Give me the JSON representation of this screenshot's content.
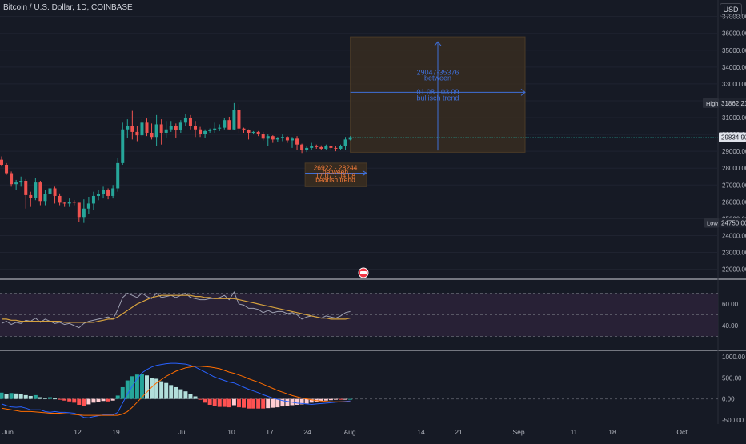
{
  "header": {
    "symbol": "Bitcoin / U.S. Dollar, 1D, COINBASE",
    "currency": "USD"
  },
  "colors": {
    "background": "#161a25",
    "up": "#26a69a",
    "down": "#ef5350",
    "grid": "#1f2330",
    "axis_text": "#b2b5be",
    "projection_box": "#3c2f20",
    "projection_text": "#3f6fd8",
    "bearish_text": "#f57c3a",
    "rsi_band": "#2a2238",
    "rsi_line": "#9c9fb0",
    "rsi_ma": "#d6a23e",
    "macd_line": "#2962ff",
    "signal_line": "#ff6d00"
  },
  "chart_data": {
    "type": "candlestick",
    "price_axis": {
      "ticks": [
        "37000.00",
        "36000.00",
        "35000.00",
        "34000.00",
        "33000.00",
        "32000.00",
        "31000.00",
        "30000.00",
        "29000.00",
        "28000.00",
        "27000.00",
        "26000.00",
        "25000.00",
        "24000.00",
        "23000.00",
        "22000.00"
      ],
      "min": 21600,
      "max": 37600
    },
    "time_axis": {
      "labels": [
        "Jun",
        "12",
        "19",
        "Jul",
        "10",
        "17",
        "24",
        "Aug",
        "14",
        "21",
        "Sep",
        "11",
        "18",
        "Oct"
      ]
    },
    "candles": [
      [
        28500,
        28700,
        28100,
        28200
      ],
      [
        28200,
        28300,
        27600,
        27700
      ],
      [
        27700,
        27800,
        26900,
        27050
      ],
      [
        27050,
        27300,
        26700,
        27150
      ],
      [
        27150,
        27500,
        26900,
        27250
      ],
      [
        27250,
        27350,
        25600,
        26400
      ],
      [
        26400,
        26600,
        25700,
        26250
      ],
      [
        26250,
        27400,
        26100,
        27150
      ],
      [
        27150,
        27250,
        25800,
        26050
      ],
      [
        26050,
        26700,
        25800,
        26450
      ],
      [
        26450,
        27100,
        26200,
        26800
      ],
      [
        26800,
        26900,
        25900,
        26350
      ],
      [
        26350,
        26500,
        25800,
        25950
      ],
      [
        25950,
        26000,
        25700,
        25900
      ],
      [
        25900,
        26200,
        25700,
        26000
      ],
      [
        26000,
        26100,
        25800,
        25950
      ],
      [
        25950,
        25900,
        24800,
        25100
      ],
      [
        25100,
        26150,
        24750,
        25600
      ],
      [
        25600,
        26300,
        25300,
        25900
      ],
      [
        25900,
        26600,
        25500,
        26350
      ],
      [
        26350,
        26700,
        26100,
        26450
      ],
      [
        26450,
        26900,
        26200,
        26700
      ],
      [
        26700,
        26800,
        26150,
        26350
      ],
      [
        26350,
        27000,
        26200,
        26800
      ],
      [
        26800,
        28600,
        26600,
        28300
      ],
      [
        28300,
        30700,
        28200,
        30300
      ],
      [
        30300,
        30900,
        29800,
        30500
      ],
      [
        30500,
        31400,
        29700,
        30150
      ],
      [
        30150,
        30500,
        29600,
        29950
      ],
      [
        29950,
        30900,
        29850,
        30700
      ],
      [
        30700,
        30950,
        29900,
        30100
      ],
      [
        30100,
        30650,
        29700,
        29850
      ],
      [
        29850,
        31150,
        29300,
        30600
      ],
      [
        30600,
        30900,
        29400,
        30100
      ],
      [
        30100,
        30800,
        29800,
        30300
      ],
      [
        30300,
        30800,
        30150,
        30500
      ],
      [
        30500,
        30650,
        29800,
        30250
      ],
      [
        30250,
        30850,
        30100,
        30700
      ],
      [
        30700,
        31200,
        30500,
        31000
      ],
      [
        31000,
        31150,
        30300,
        30500
      ],
      [
        30500,
        30800,
        29850,
        30300
      ],
      [
        30300,
        30450,
        29850,
        30050
      ],
      [
        30050,
        30300,
        29800,
        30200
      ],
      [
        30200,
        30350,
        30100,
        30250
      ],
      [
        30250,
        30700,
        30100,
        30350
      ],
      [
        30350,
        30600,
        30200,
        30400
      ],
      [
        30400,
        31000,
        30300,
        30850
      ],
      [
        30850,
        31050,
        30300,
        30300
      ],
      [
        30300,
        31862,
        30250,
        31450
      ],
      [
        31450,
        31800,
        30100,
        30350
      ],
      [
        30350,
        30400,
        30100,
        30250
      ],
      [
        30250,
        30300,
        29700,
        30100
      ],
      [
        30100,
        30200,
        30000,
        30150
      ],
      [
        30150,
        30200,
        29900,
        30050
      ],
      [
        30050,
        30150,
        29650,
        29750
      ],
      [
        29750,
        30000,
        29300,
        29900
      ],
      [
        29900,
        29950,
        29500,
        29700
      ],
      [
        29700,
        29850,
        29550,
        29800
      ],
      [
        29800,
        30000,
        29600,
        29850
      ],
      [
        29850,
        29900,
        29500,
        29650
      ],
      [
        29650,
        29850,
        29200,
        29750
      ],
      [
        29750,
        29900,
        29100,
        29400
      ],
      [
        29400,
        29450,
        28900,
        29100
      ],
      [
        29100,
        29300,
        28950,
        29200
      ],
      [
        29200,
        29500,
        29100,
        29300
      ],
      [
        29300,
        29400,
        29150,
        29250
      ],
      [
        29250,
        29350,
        29100,
        29150
      ],
      [
        29150,
        29400,
        29100,
        29300
      ],
      [
        29300,
        29350,
        29100,
        29200
      ],
      [
        29200,
        29300,
        29000,
        29150
      ],
      [
        29150,
        29400,
        29100,
        29300
      ],
      [
        29300,
        29850,
        29100,
        29700
      ],
      [
        29700,
        29900,
        29650,
        29834
      ]
    ],
    "high_label": "High",
    "high_value": "31862.21",
    "low_label": "Low",
    "low_value": "24750.00",
    "last_price": "29834.90",
    "bullish_projection": {
      "range": "29047-35376",
      "between": "between",
      "dates": "01.08  -  03.09",
      "trend": "bullisch trend"
    },
    "bearish_projection": {
      "range": "26922 - 28244",
      "between": "between",
      "dates": "17.07 - 04.08",
      "trend": "bearish trend"
    },
    "rsi": {
      "ticks": [
        "60.00",
        "40.00"
      ],
      "min": 20,
      "max": 80,
      "values": [
        42,
        44,
        41,
        43,
        42,
        45,
        44,
        47,
        43,
        46,
        44,
        42,
        43,
        41,
        42,
        40,
        38,
        42,
        44,
        45,
        46,
        47,
        48,
        46,
        55,
        66,
        70,
        68,
        66,
        70,
        67,
        65,
        70,
        66,
        67,
        68,
        66,
        68,
        70,
        66,
        65,
        64,
        64,
        65,
        65,
        66,
        68,
        64,
        71,
        60,
        59,
        56,
        56,
        55,
        52,
        54,
        52,
        53,
        53,
        51,
        52,
        50,
        46,
        48,
        49,
        48,
        47,
        49,
        48,
        47,
        49,
        52,
        53
      ],
      "ma": [
        46,
        46,
        45,
        45,
        44,
        44,
        44,
        44,
        44,
        44,
        44,
        44,
        44,
        43,
        43,
        43,
        43,
        43,
        43,
        43,
        44,
        45,
        46,
        46,
        48,
        51,
        54,
        57,
        60,
        62,
        64,
        66,
        67,
        68,
        68,
        68,
        68,
        68,
        68,
        68,
        67,
        67,
        66,
        66,
        65,
        65,
        65,
        65,
        65,
        64,
        63,
        62,
        61,
        60,
        59,
        58,
        57,
        56,
        55,
        54,
        53,
        52,
        51,
        50,
        49,
        48,
        47,
        47,
        46,
        46,
        46,
        46,
        47
      ]
    },
    "macd": {
      "ticks": [
        "1000.00",
        "500.00",
        "0.00",
        "-500.00"
      ],
      "min": -560,
      "max": 1080,
      "hist": [
        150,
        120,
        140,
        130,
        120,
        90,
        70,
        90,
        40,
        30,
        40,
        10,
        -10,
        -40,
        -60,
        -90,
        -140,
        -170,
        -130,
        -90,
        -70,
        -50,
        -60,
        -40,
        80,
        280,
        440,
        540,
        580,
        600,
        560,
        500,
        480,
        420,
        380,
        330,
        280,
        230,
        180,
        120,
        60,
        -20,
        -90,
        -140,
        -170,
        -190,
        -190,
        -200,
        -150,
        -200,
        -210,
        -230,
        -230,
        -230,
        -230,
        -220,
        -210,
        -200,
        -180,
        -170,
        -150,
        -140,
        -130,
        -110,
        -90,
        -70,
        -50,
        -40,
        -30,
        -20,
        -20,
        -10,
        0
      ],
      "macd": [
        -120,
        -160,
        -190,
        -200,
        -190,
        -220,
        -260,
        -260,
        -260,
        -300,
        -320,
        -300,
        -320,
        -320,
        -330,
        -340,
        -380,
        -440,
        -450,
        -420,
        -400,
        -380,
        -380,
        -380,
        -320,
        -100,
        120,
        300,
        480,
        620,
        700,
        760,
        800,
        820,
        840,
        850,
        850,
        840,
        830,
        800,
        760,
        700,
        640,
        580,
        520,
        480,
        440,
        400,
        380,
        330,
        280,
        230,
        190,
        150,
        100,
        60,
        20,
        -10,
        -40,
        -60,
        -80,
        -100,
        -110,
        -120,
        -130,
        -120,
        -110,
        -100,
        -90,
        -80,
        -70,
        -60,
        -50
      ],
      "signal": [
        -220,
        -240,
        -260,
        -280,
        -300,
        -300,
        -300,
        -310,
        -320,
        -330,
        -340,
        -340,
        -340,
        -350,
        -360,
        -370,
        -380,
        -390,
        -390,
        -390,
        -390,
        -390,
        -390,
        -390,
        -390,
        -360,
        -300,
        -200,
        -80,
        40,
        160,
        280,
        380,
        460,
        540,
        600,
        660,
        700,
        740,
        760,
        780,
        780,
        770,
        760,
        740,
        720,
        680,
        640,
        610,
        570,
        530,
        480,
        440,
        400,
        350,
        300,
        250,
        200,
        160,
        120,
        80,
        50,
        20,
        0,
        -20,
        -40,
        -50,
        -60,
        -70,
        -70,
        -70,
        -70,
        -70
      ]
    }
  }
}
